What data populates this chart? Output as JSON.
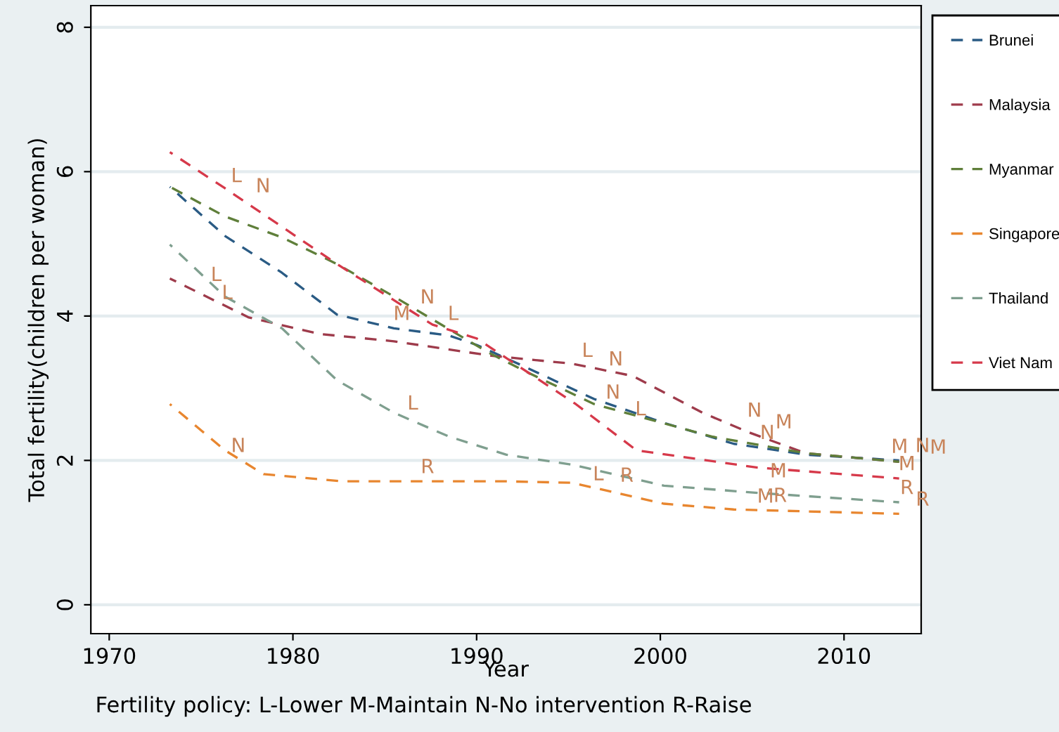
{
  "chart_data": {
    "type": "line",
    "xlabel": "Year",
    "ylabel": "Total fertility(children per woman)",
    "xlim": [
      1969,
      2014.2
    ],
    "xticks": [
      1970,
      1980,
      1990,
      2000,
      2010
    ],
    "ylim": [
      -0.4,
      8.3
    ],
    "yticks": [
      0,
      2,
      4,
      6,
      8
    ],
    "grid": "y",
    "legend": "right",
    "line_style": "dashed",
    "marker": "none",
    "series": [
      {
        "name": "Brunei",
        "color": "#2a5b84",
        "x": [
          1973.3,
          1976.3,
          1979.4,
          1982.4,
          1985.5,
          1988.5,
          1990,
          1992.6,
          1996.4,
          2000.2,
          2004,
          2007.9,
          2013
        ],
        "values": [
          5.79,
          5.11,
          4.6,
          4.02,
          3.83,
          3.73,
          3.6,
          3.3,
          2.85,
          2.52,
          2.23,
          2.08,
          2.0
        ]
      },
      {
        "name": "Malaysia",
        "color": "#9e3b4b",
        "x": [
          1973.3,
          1977.6,
          1981.5,
          1985.5,
          1990.8,
          1995.2,
          1998.5,
          2002.3,
          2004.8,
          2007.9,
          2013
        ],
        "values": [
          4.52,
          3.98,
          3.75,
          3.65,
          3.45,
          3.34,
          3.17,
          2.66,
          2.39,
          2.1,
          1.98
        ]
      },
      {
        "name": "Myanmar",
        "color": "#5f7f3a",
        "x": [
          1973.3,
          1976.3,
          1979.4,
          1982.4,
          1985.5,
          1990.6,
          1992.6,
          1996.4,
          2002.8,
          2007.9,
          2013
        ],
        "values": [
          5.79,
          5.38,
          5.09,
          4.72,
          4.27,
          3.5,
          3.24,
          2.78,
          2.33,
          2.1,
          1.98
        ]
      },
      {
        "name": "Singapore",
        "color": "#e8862f",
        "x": [
          1973.3,
          1976.3,
          1978.4,
          1982.7,
          1991.6,
          1995.2,
          2000.2,
          2004,
          2013
        ],
        "values": [
          2.78,
          2.14,
          1.81,
          1.71,
          1.71,
          1.69,
          1.4,
          1.32,
          1.26
        ]
      },
      {
        "name": "Thailand",
        "color": "#7f9f8f",
        "x": [
          1973.3,
          1976.3,
          1979.4,
          1982.4,
          1985.5,
          1988.5,
          1991.6,
          1995.2,
          2000.2,
          2005.3,
          2013
        ],
        "values": [
          4.99,
          4.27,
          3.83,
          3.11,
          2.66,
          2.33,
          2.08,
          1.94,
          1.65,
          1.55,
          1.42
        ]
      },
      {
        "name": "Viet Nam",
        "color": "#d6394a",
        "x": [
          1973.3,
          1976.3,
          1982.4,
          1987.6,
          1990,
          1995.4,
          1998.7,
          2005.3,
          2013
        ],
        "values": [
          6.27,
          5.77,
          4.72,
          3.88,
          3.69,
          2.78,
          2.14,
          1.9,
          1.75
        ]
      }
    ],
    "annotations": [
      {
        "text": "L",
        "x": 1976.5,
        "y": 5.74
      },
      {
        "text": "N",
        "x": 1977.1,
        "y": 5.6
      },
      {
        "text": "L",
        "x": 1975.4,
        "y": 4.37
      },
      {
        "text": "L",
        "x": 1976,
        "y": 4.12
      },
      {
        "text": "N",
        "x": 1976.6,
        "y": 2.0
      },
      {
        "text": "L",
        "x": 1986.1,
        "y": 2.59
      },
      {
        "text": "R",
        "x": 1986.9,
        "y": 1.71
      },
      {
        "text": "N",
        "x": 1986.9,
        "y": 4.06
      },
      {
        "text": "M",
        "x": 1985.5,
        "y": 3.83
      },
      {
        "text": "L",
        "x": 1986.6,
        "y": 3.83
      },
      {
        "text": "L",
        "x": 1995.6,
        "y": 3.32
      },
      {
        "text": "N",
        "x": 1996.3,
        "y": 3.2
      },
      {
        "text": "N",
        "x": 1997,
        "y": 2.74
      },
      {
        "text": "L",
        "x": 1996.8,
        "y": 2.51
      },
      {
        "text": "L",
        "x": 1996.2,
        "y": 1.61
      },
      {
        "text": "R",
        "x": 1996.9,
        "y": 1.59
      },
      {
        "text": "N",
        "x": 2004.7,
        "y": 2.49
      },
      {
        "text": "N",
        "x": 2005.4,
        "y": 2.18
      },
      {
        "text": "M",
        "x": 2006.3,
        "y": 2.33
      },
      {
        "text": "M",
        "x": 2006,
        "y": 1.65
      },
      {
        "text": "M",
        "x": 2005.3,
        "y": 1.3
      },
      {
        "text": "R",
        "x": 2006.1,
        "y": 1.31
      },
      {
        "text": "M",
        "x": 2012.6,
        "y": 1.99
      },
      {
        "text": "N",
        "x": 2013,
        "y": 2.0
      },
      {
        "text": "M",
        "x": 2013,
        "y": 1.98
      },
      {
        "text": "M",
        "x": 2013,
        "y": 1.75
      },
      {
        "text": "R",
        "x": 2013,
        "y": 1.42
      },
      {
        "text": "R",
        "x": 2013,
        "y": 1.26
      },
      "Fertility policy: L-Lower M-Maintain N-No intervention R-Raise"
    ]
  }
}
